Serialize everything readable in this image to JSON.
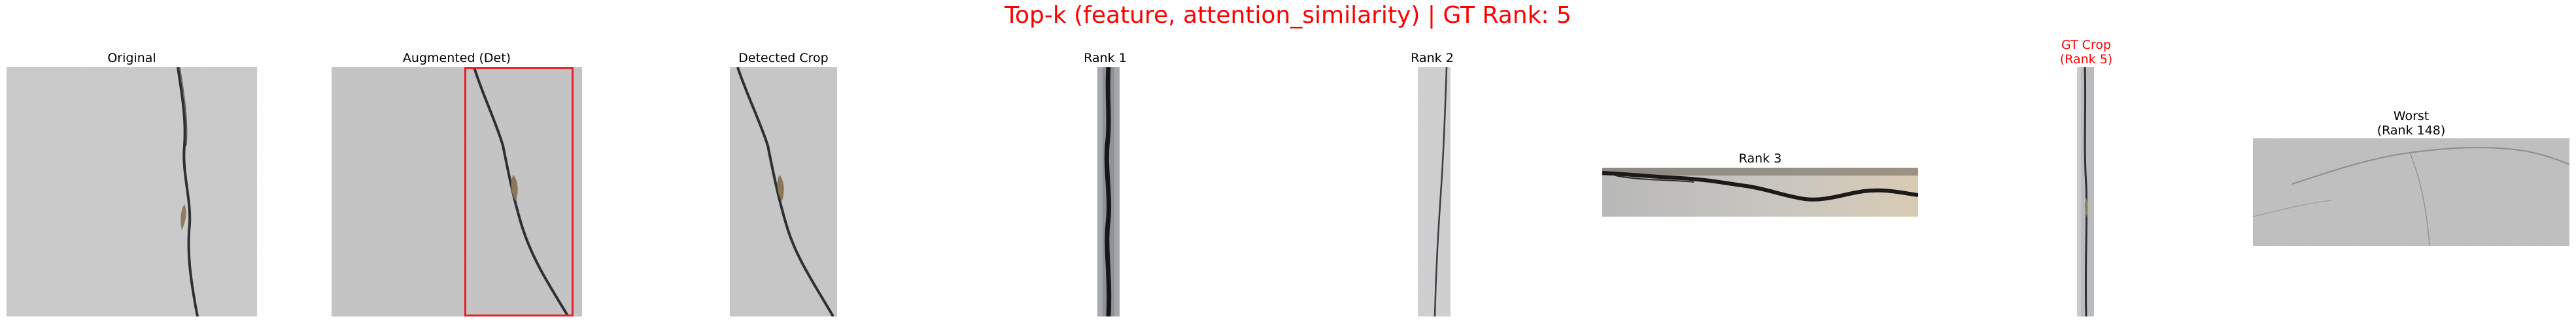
{
  "figure": {
    "title": "Top-k (feature, attention_similarity) | GT Rank: 5",
    "title_color": "#ff0000"
  },
  "panels": [
    {
      "id": "original",
      "title": "Original",
      "title_color": "#000000"
    },
    {
      "id": "augmented",
      "title": "Augmented (Det)",
      "title_color": "#000000",
      "box_color": "#e8202a"
    },
    {
      "id": "detected",
      "title": "Detected Crop",
      "title_color": "#000000"
    },
    {
      "id": "rank1",
      "title": "Rank 1",
      "title_color": "#000000"
    },
    {
      "id": "rank2",
      "title": "Rank 2",
      "title_color": "#000000"
    },
    {
      "id": "rank3",
      "title": "Rank 3",
      "title_color": "#000000"
    },
    {
      "id": "gtcrop",
      "title_line1": "GT Crop",
      "title_line2": "(Rank 5)",
      "title_color": "#ff0000"
    },
    {
      "id": "worst",
      "title_line1": "Worst",
      "title_line2": "(Rank 148)",
      "title_color": "#000000"
    }
  ]
}
